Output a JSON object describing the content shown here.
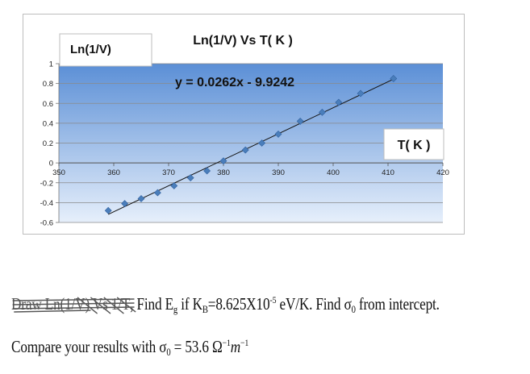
{
  "chart_data": {
    "type": "scatter",
    "title": "Ln(1/V) Vs T( K )",
    "ylabel": "Ln(1/V)",
    "xlabel": "T( K )",
    "trendline": {
      "type": "linear",
      "equation": "y = 0.0262x - 9.9242",
      "slope": 0.0262,
      "intercept": -9.9242
    },
    "series": [
      {
        "color": "#4a7ebb",
        "x": [
          359,
          362,
          365,
          368,
          371,
          374,
          377,
          380,
          384,
          387,
          390,
          394,
          398,
          401,
          405,
          411
        ],
        "y": [
          -0.48,
          -0.41,
          -0.36,
          -0.3,
          -0.23,
          -0.15,
          -0.08,
          0.02,
          0.13,
          0.2,
          0.29,
          0.42,
          0.51,
          0.61,
          0.7,
          0.85
        ]
      }
    ],
    "xlim": [
      350,
      420
    ],
    "ylim": [
      -0.6,
      1
    ],
    "x_ticks": [
      "350",
      "360",
      "370",
      "380",
      "390",
      "400",
      "410",
      "420"
    ],
    "y_ticks": [
      "1",
      "0.8",
      "0.6",
      "0.4",
      "0.2",
      "0",
      "-0.2",
      "-0.4",
      "-0.6"
    ],
    "grid": true,
    "plot_fill_colors": [
      "#5b8fd6",
      "#e6effb"
    ]
  },
  "problem": {
    "strike_text": "Draw Ln(1/V) Vs 1/T",
    "line1_prefix": ", Find E",
    "eg_sub": "g",
    "line1_kb": " if K",
    "kb_sub": "B",
    "kb_value": "=8.625X10",
    "kb_exp": "-5",
    "kb_unit": " eV/K.  Find σ",
    "sigma_sub": "0",
    "line1_suffix": " from intercept.",
    "line2_prefix": "Compare your results with σ",
    "sigma2_sub": "0",
    "line2_value": " = 53.6 Ω",
    "omega_exp": "−1",
    "line2_m": "m",
    "m_exp": "−1"
  }
}
